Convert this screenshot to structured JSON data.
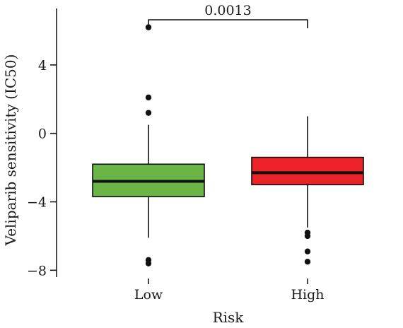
{
  "chart_data": {
    "type": "box",
    "xlabel": "Risk",
    "ylabel": "Veliparib sensitivity (IC50)",
    "categories": [
      "Low",
      "High"
    ],
    "yticks": [
      4,
      0,
      -4,
      -8
    ],
    "ylim": [
      -8.4,
      7.3
    ],
    "boxes": [
      {
        "category": "Low",
        "color": "#6ab545",
        "whisker_low": -6.1,
        "q1": -3.7,
        "median": -2.8,
        "q3": -1.8,
        "whisker_high": 0.5,
        "outliers": [
          6.2,
          2.1,
          1.2,
          -7.4,
          -7.6
        ]
      },
      {
        "category": "High",
        "color": "#ec2227",
        "whisker_low": -5.5,
        "q1": -3.0,
        "median": -2.3,
        "q3": -1.4,
        "whisker_high": 1.0,
        "outliers": [
          -5.8,
          -6.0,
          -6.9,
          -7.5
        ]
      }
    ],
    "comparison": {
      "label": "0.0013",
      "between": [
        "Low",
        "High"
      ]
    }
  }
}
